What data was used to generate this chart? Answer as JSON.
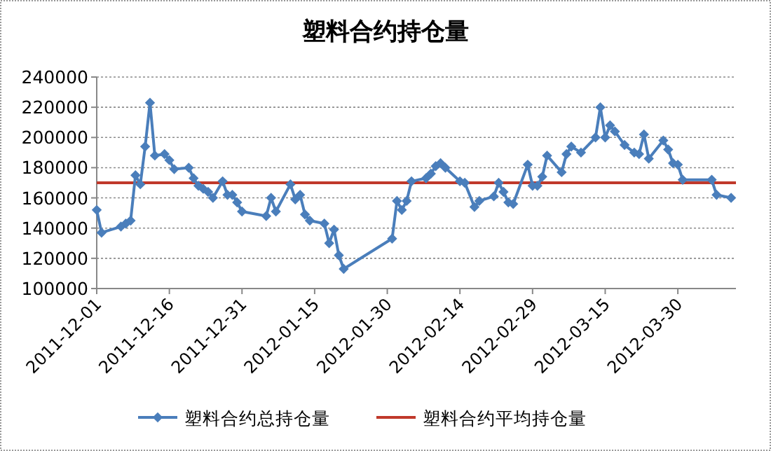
{
  "chart_data": {
    "type": "line",
    "title": "塑料合约持仓量",
    "x": [
      "2011-12-01",
      "2011-12-02",
      "2011-12-06",
      "2011-12-07",
      "2011-12-08",
      "2011-12-09",
      "2011-12-10",
      "2011-12-11",
      "2011-12-12",
      "2011-12-13",
      "2011-12-15",
      "2011-12-16",
      "2011-12-17",
      "2011-12-20",
      "2011-12-21",
      "2011-12-22",
      "2011-12-23",
      "2011-12-24",
      "2011-12-25",
      "2011-12-27",
      "2011-12-28",
      "2011-12-29",
      "2011-12-30",
      "2011-12-31",
      "2012-01-05",
      "2012-01-06",
      "2012-01-07",
      "2012-01-10",
      "2012-01-11",
      "2012-01-12",
      "2012-01-13",
      "2012-01-14",
      "2012-01-17",
      "2012-01-18",
      "2012-01-19",
      "2012-01-20",
      "2012-01-21",
      "2012-01-31",
      "2012-02-01",
      "2012-02-02",
      "2012-02-03",
      "2012-02-04",
      "2012-02-07",
      "2012-02-08",
      "2012-02-09",
      "2012-02-10",
      "2012-02-11",
      "2012-02-14",
      "2012-02-15",
      "2012-02-17",
      "2012-02-18",
      "2012-02-21",
      "2012-02-22",
      "2012-02-23",
      "2012-02-24",
      "2012-02-25",
      "2012-02-28",
      "2012-02-29",
      "2012-03-01",
      "2012-03-02",
      "2012-03-03",
      "2012-03-06",
      "2012-03-07",
      "2012-03-08",
      "2012-03-10",
      "2012-03-13",
      "2012-03-14",
      "2012-03-15",
      "2012-03-16",
      "2012-03-17",
      "2012-03-19",
      "2012-03-21",
      "2012-03-22",
      "2012-03-23",
      "2012-03-24",
      "2012-03-27",
      "2012-03-28",
      "2012-03-29",
      "2012-03-30",
      "2012-03-31",
      "2012-04-06",
      "2012-04-07",
      "2012-04-10"
    ],
    "series": [
      {
        "name": "塑料合约总持仓量",
        "color": "#4a7ebb",
        "values": [
          152000,
          137000,
          141000,
          143000,
          145000,
          175000,
          169000,
          194000,
          223000,
          188000,
          189000,
          185000,
          179000,
          180000,
          173000,
          168000,
          166000,
          164000,
          160000,
          171000,
          162000,
          162000,
          157000,
          151000,
          148000,
          160000,
          151000,
          169000,
          159000,
          162000,
          149000,
          145000,
          143000,
          130000,
          139000,
          122000,
          113000,
          133000,
          158000,
          152000,
          158000,
          171000,
          173000,
          176000,
          181000,
          183000,
          180000,
          171000,
          170000,
          154000,
          158000,
          161000,
          170000,
          164000,
          157000,
          156000,
          182000,
          168000,
          168000,
          174000,
          188000,
          177000,
          189000,
          194000,
          190000,
          200000,
          220000,
          200000,
          208000,
          204000,
          195000,
          190000,
          189000,
          202000,
          186000,
          198000,
          192000,
          183000,
          182000,
          172000,
          172000,
          162000,
          160000
        ]
      }
    ],
    "ref_lines": [
      {
        "axis": "y",
        "value": 170000,
        "label": "塑料合约平均持仓量",
        "color": "#c0392b"
      }
    ],
    "xlim": [
      "2011-12-01",
      "2012-04-11"
    ],
    "xticks": [
      "2011-12-01",
      "2011-12-16",
      "2011-12-31",
      "2012-01-15",
      "2012-01-30",
      "2012-02-14",
      "2012-02-29",
      "2012-03-15",
      "2012-03-30"
    ],
    "ylim": [
      100000,
      240000
    ],
    "yticks": [
      100000,
      120000,
      140000,
      160000,
      180000,
      200000,
      220000,
      240000
    ],
    "grid": "y",
    "legend": "bottom",
    "marker": "diamond",
    "line_style": "solid"
  }
}
